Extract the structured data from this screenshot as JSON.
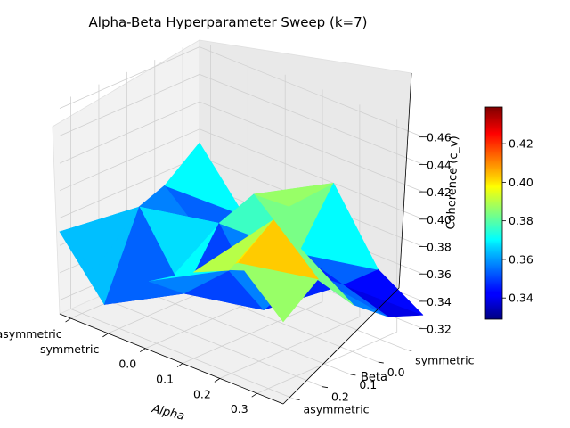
{
  "chart_data": {
    "type": "surface3d",
    "title": "Alpha-Beta Hyperparameter Sweep (k=7)",
    "xlabel": "Alpha",
    "ylabel": "Beta",
    "zlabel": "Coherence (c_v)",
    "x_categories": [
      "asymmetric",
      "symmetric",
      "0.0",
      "0.1",
      "0.2",
      "0.3"
    ],
    "y_categories": [
      "asymmetric",
      "symmetric",
      "0.0",
      "0.1",
      "0.2"
    ],
    "x_ticks": [
      "asymmetric",
      "symmetric",
      "0.0",
      "0.1",
      "0.2",
      "0.3"
    ],
    "y_ticks": [
      "symmetric",
      "0.0",
      "0.1",
      "0.2",
      "asymmetric"
    ],
    "zlim": [
      0.31,
      0.465
    ],
    "z_ticks": [
      "0.32",
      "0.34",
      "0.36",
      "0.38",
      "0.40",
      "0.42",
      "0.44",
      "0.46"
    ],
    "z_grid": [
      [
        0.37,
        0.33,
        0.36,
        0.38,
        0.4,
        0.37
      ],
      [
        0.33,
        0.39,
        0.34,
        0.37,
        0.42,
        0.39
      ],
      [
        0.36,
        0.33,
        0.38,
        0.33,
        0.37,
        0.36
      ],
      [
        0.37,
        0.34,
        0.39,
        0.36,
        0.35,
        0.34
      ],
      [
        0.39,
        0.35,
        0.37,
        0.4,
        0.35,
        0.33
      ]
    ],
    "colormap": "jet",
    "colorbar": {
      "range": [
        0.329,
        0.439
      ],
      "ticks": [
        "0.34",
        "0.36",
        "0.38",
        "0.40",
        "0.42"
      ]
    },
    "grid": true
  }
}
